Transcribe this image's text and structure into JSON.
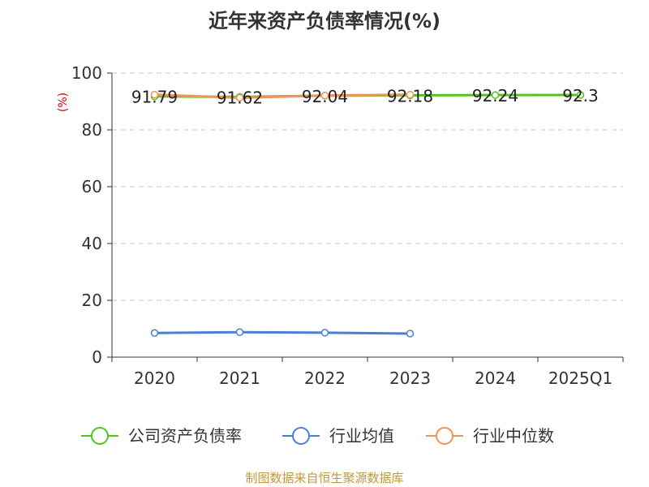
{
  "title": "近年来资产负债率情况(%)",
  "source": "制图数据来自恒生聚源数据库",
  "chart_data": {
    "type": "line",
    "categories": [
      "2020",
      "2021",
      "2022",
      "2023",
      "2024",
      "2025Q1"
    ],
    "ylabel": "(%)",
    "ylim": [
      0,
      100
    ],
    "yticks": [
      0,
      20,
      40,
      60,
      80,
      100
    ],
    "grid": true,
    "legend_position": "bottom",
    "series": [
      {
        "name": "公司资产负债率",
        "color": "#52c41a",
        "values": [
          91.79,
          91.62,
          92.04,
          92.18,
          92.24,
          92.3
        ],
        "labels": [
          "91.79",
          "91.62",
          "92.04",
          "92.18",
          "92.24",
          "92.3"
        ]
      },
      {
        "name": "行业均值",
        "color": "#4a7fd4",
        "values": [
          8.5,
          8.8,
          8.6,
          8.3,
          null,
          null
        ]
      },
      {
        "name": "行业中位数",
        "color": "#f0925a",
        "values": [
          92.4,
          91.3,
          92.1,
          92.4,
          null,
          null
        ]
      }
    ]
  }
}
